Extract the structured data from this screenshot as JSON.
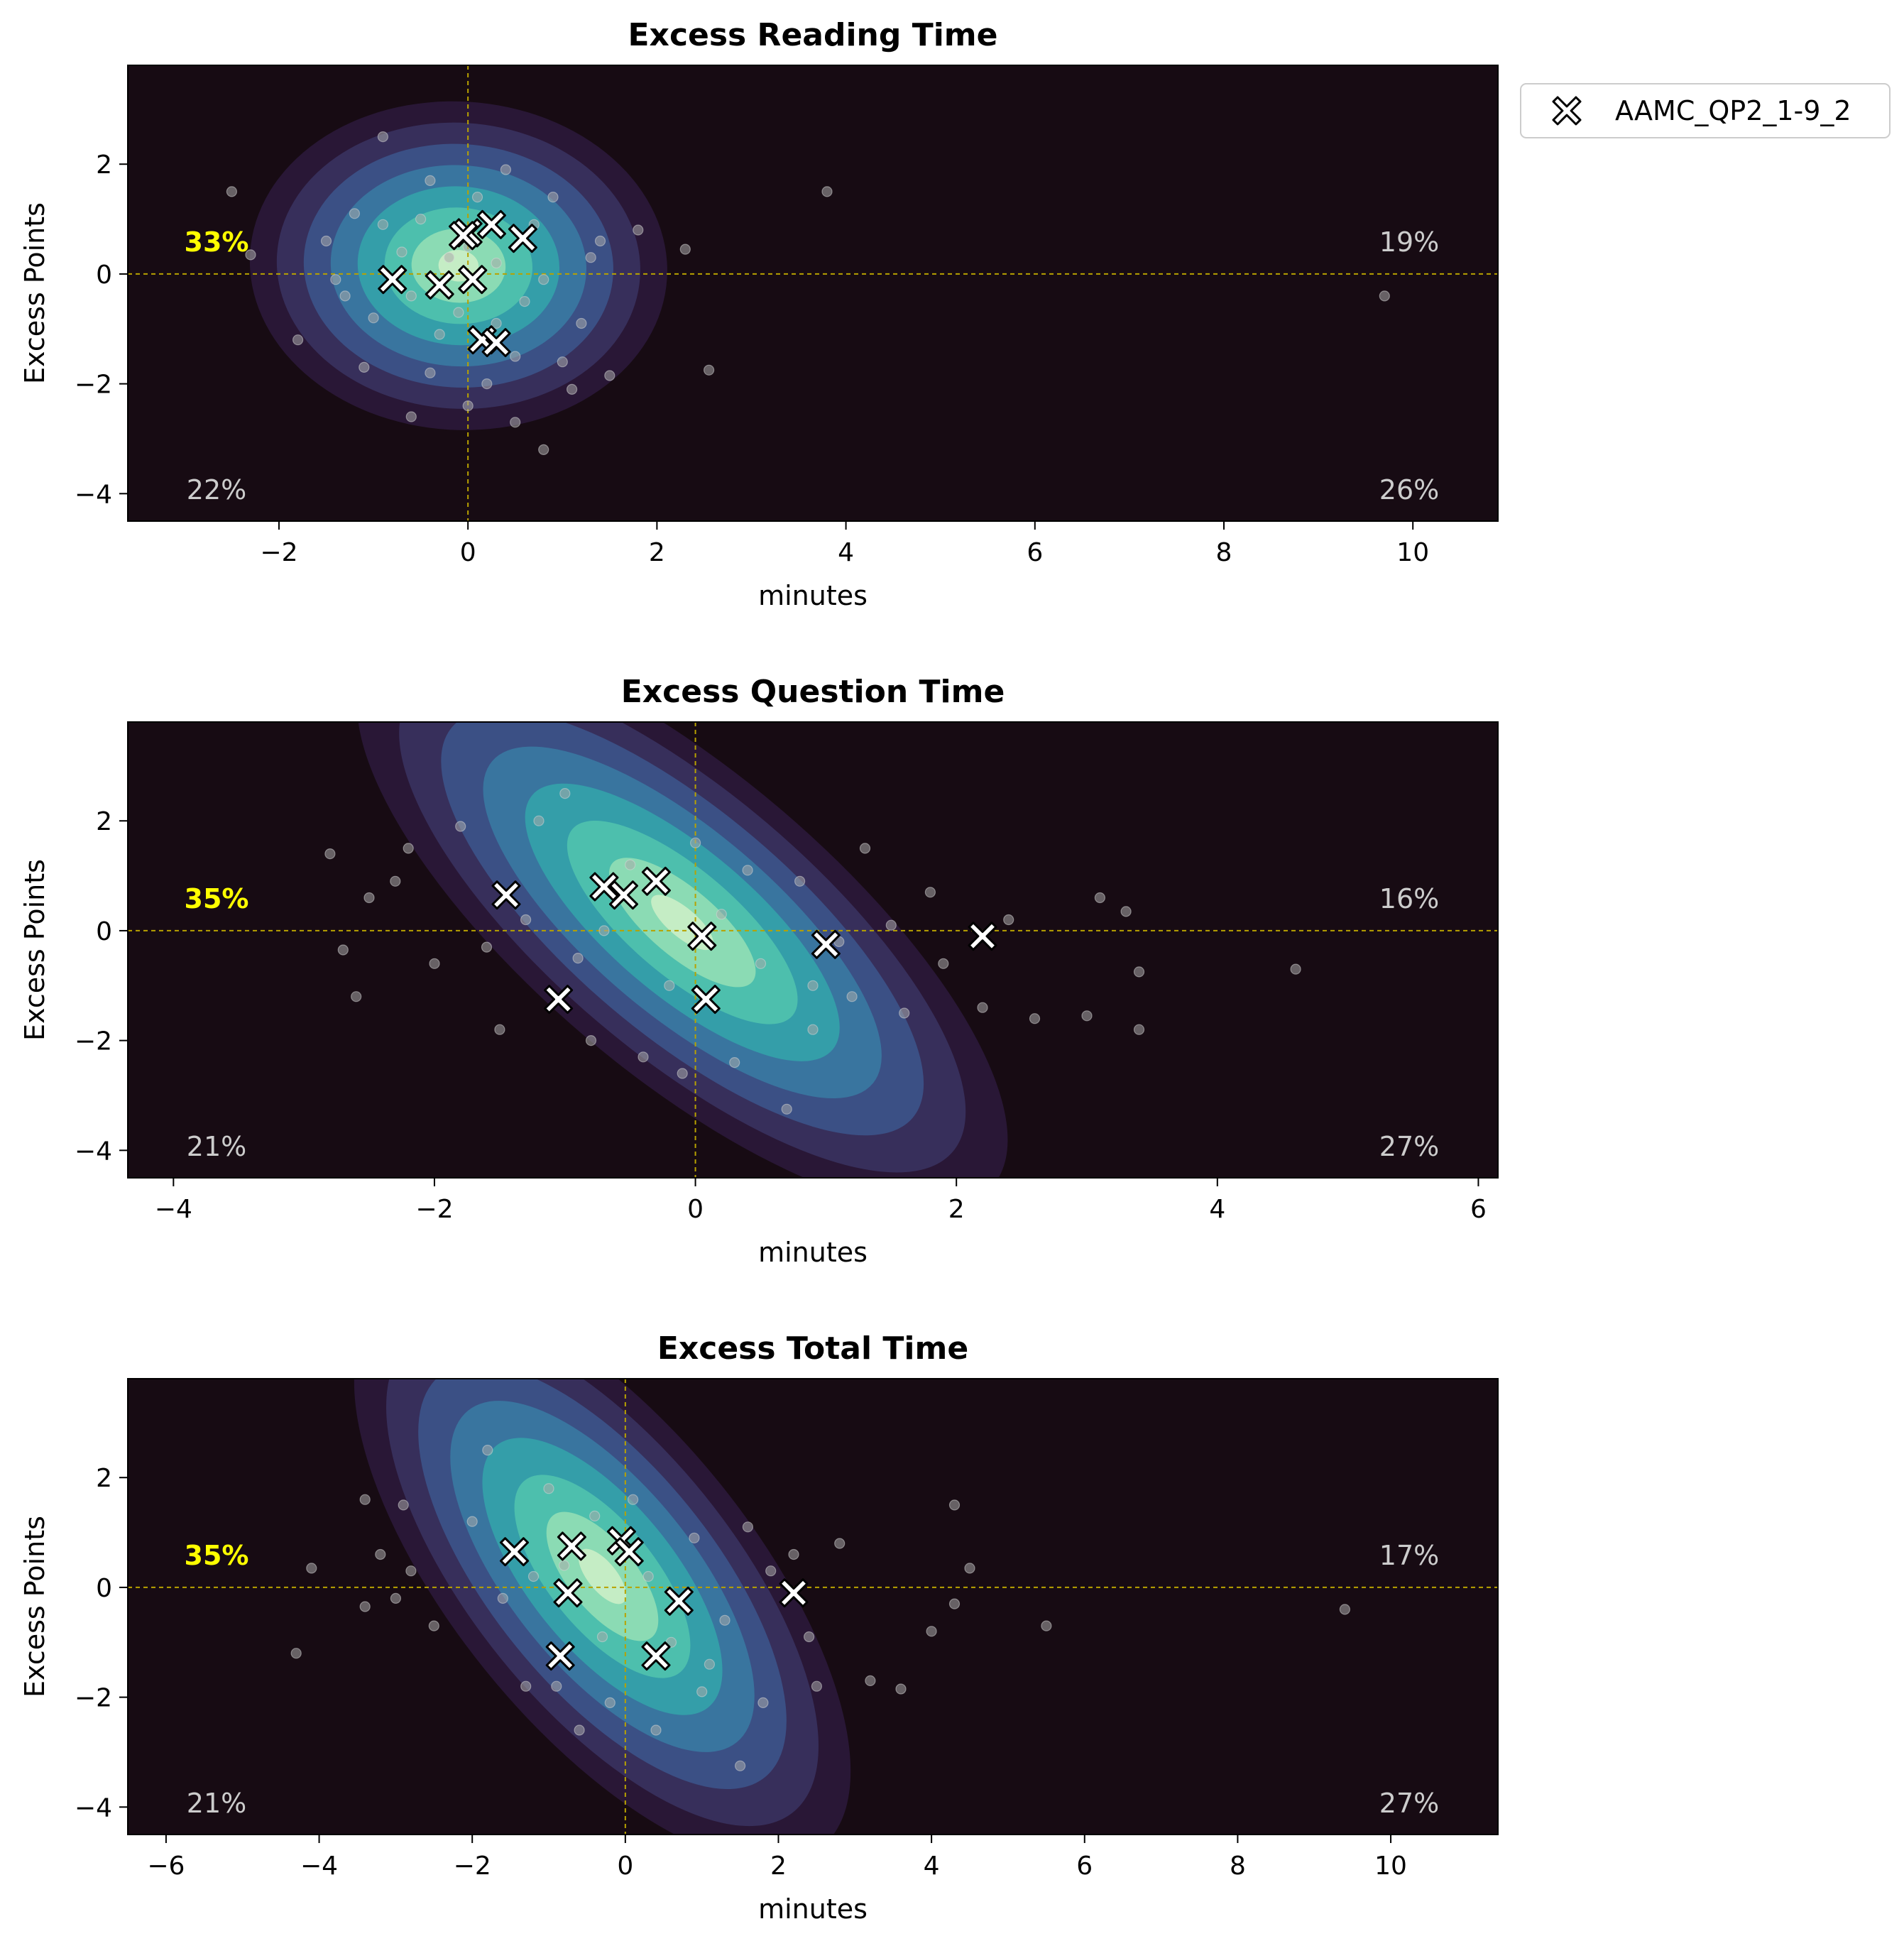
{
  "chart_data": [
    {
      "type": "scatter",
      "title": "Excess Reading Time",
      "xlabel": "minutes",
      "ylabel": "Excess Points",
      "xlim": [
        -3.6,
        10.9
      ],
      "ylim": [
        -4.5,
        3.8
      ],
      "xticks": [
        -2,
        0,
        2,
        4,
        6,
        8,
        10
      ],
      "yticks": [
        -4,
        -2,
        0,
        2
      ],
      "reference_lines": {
        "x": 0,
        "y": 0
      },
      "quadrant_labels": {
        "top_left": "33%",
        "top_right": "19%",
        "bottom_left": "22%",
        "bottom_right": "26%"
      },
      "highlight_quadrant": "top_left",
      "density": {
        "cx": -0.1,
        "cy": 0.15,
        "sx": 0.85,
        "sy": 1.15,
        "rho": -0.05
      },
      "series": [
        {
          "name": "AAMC_QP2_1-9_2",
          "marker": "X",
          "points": [
            [
              -0.8,
              -0.1
            ],
            [
              -0.3,
              -0.2
            ],
            [
              0.05,
              -0.1
            ],
            [
              0.0,
              0.75
            ],
            [
              -0.05,
              0.7
            ],
            [
              0.25,
              0.9
            ],
            [
              0.58,
              0.65
            ],
            [
              0.15,
              -1.2
            ],
            [
              0.3,
              -1.25
            ]
          ]
        }
      ],
      "background_points": [
        [
          -2.5,
          1.5
        ],
        [
          -2.3,
          0.35
        ],
        [
          -1.8,
          -1.2
        ],
        [
          -1.5,
          0.6
        ],
        [
          -1.3,
          -0.4
        ],
        [
          -1.1,
          -1.7
        ],
        [
          -0.9,
          2.5
        ],
        [
          -0.6,
          -2.6
        ],
        [
          -0.4,
          -1.8
        ],
        [
          0.0,
          -2.4
        ],
        [
          0.2,
          -2.0
        ],
        [
          0.5,
          -2.7
        ],
        [
          0.8,
          -3.2
        ],
        [
          1.1,
          -2.1
        ],
        [
          1.5,
          -1.85
        ],
        [
          1.8,
          0.8
        ],
        [
          2.3,
          0.45
        ],
        [
          2.55,
          -1.75
        ],
        [
          3.8,
          1.5
        ],
        [
          9.7,
          -0.4
        ],
        [
          -0.5,
          1.0
        ],
        [
          -0.2,
          0.3
        ],
        [
          0.3,
          0.2
        ],
        [
          0.6,
          -0.5
        ],
        [
          -0.7,
          0.4
        ],
        [
          0.9,
          1.4
        ],
        [
          1.3,
          0.3
        ],
        [
          -1.0,
          -0.8
        ],
        [
          0.4,
          1.9
        ],
        [
          -0.3,
          -1.1
        ],
        [
          1.0,
          -1.6
        ],
        [
          -1.2,
          1.1
        ],
        [
          0.1,
          1.4
        ],
        [
          0.7,
          0.9
        ],
        [
          -0.6,
          -0.4
        ],
        [
          1.2,
          -0.9
        ],
        [
          -0.9,
          0.9
        ],
        [
          0.5,
          -1.5
        ],
        [
          1.4,
          0.6
        ],
        [
          -0.4,
          1.7
        ],
        [
          -1.4,
          -0.1
        ],
        [
          0.0,
          0.5
        ],
        [
          0.8,
          -0.1
        ],
        [
          -0.1,
          -0.7
        ],
        [
          0.3,
          -0.9
        ]
      ]
    },
    {
      "type": "scatter",
      "title": "Excess Question Time",
      "xlabel": "minutes",
      "ylabel": "Excess Points",
      "xlim": [
        -4.35,
        6.15
      ],
      "ylim": [
        -4.5,
        3.8
      ],
      "xticks": [
        -4,
        -2,
        0,
        2,
        4,
        6
      ],
      "yticks": [
        -4,
        -2,
        0,
        2
      ],
      "reference_lines": {
        "x": 0,
        "y": 0
      },
      "quadrant_labels": {
        "top_left": "35%",
        "top_right": "16%",
        "bottom_left": "21%",
        "bottom_right": "27%"
      },
      "highlight_quadrant": "top_left",
      "density": {
        "cx": -0.1,
        "cy": 0.15,
        "sx": 1.2,
        "sy": 1.05,
        "rho": -0.45
      },
      "series": [
        {
          "name": "AAMC_QP2_1-9_2",
          "marker": "X",
          "points": [
            [
              -1.45,
              0.65
            ],
            [
              -1.05,
              -1.25
            ],
            [
              -0.7,
              0.8
            ],
            [
              -0.55,
              0.65
            ],
            [
              -0.3,
              0.9
            ],
            [
              0.05,
              -0.1
            ],
            [
              0.08,
              -1.25
            ],
            [
              1.0,
              -0.25
            ],
            [
              2.2,
              -0.1
            ]
          ]
        }
      ],
      "background_points": [
        [
          -2.8,
          1.4
        ],
        [
          -2.7,
          -0.35
        ],
        [
          -2.6,
          -1.2
        ],
        [
          -2.5,
          0.6
        ],
        [
          -2.2,
          1.5
        ],
        [
          -1.8,
          1.9
        ],
        [
          -1.5,
          -1.8
        ],
        [
          -1.2,
          2.0
        ],
        [
          -1.0,
          2.5
        ],
        [
          -0.8,
          -2.0
        ],
        [
          -0.4,
          -2.3
        ],
        [
          -0.1,
          -2.6
        ],
        [
          0.3,
          -2.4
        ],
        [
          0.7,
          -3.25
        ],
        [
          0.9,
          -1.8
        ],
        [
          1.3,
          1.5
        ],
        [
          1.6,
          -1.5
        ],
        [
          1.8,
          0.7
        ],
        [
          2.2,
          -1.4
        ],
        [
          2.6,
          -1.6
        ],
        [
          3.0,
          -1.55
        ],
        [
          3.1,
          0.6
        ],
        [
          3.3,
          0.35
        ],
        [
          3.4,
          -0.75
        ],
        [
          3.4,
          -1.8
        ],
        [
          4.6,
          -0.7
        ],
        [
          -2.0,
          -0.6
        ],
        [
          -1.3,
          0.2
        ],
        [
          -0.9,
          -0.5
        ],
        [
          -0.5,
          1.2
        ],
        [
          0.2,
          0.3
        ],
        [
          0.5,
          -0.6
        ],
        [
          0.8,
          0.9
        ],
        [
          1.1,
          -0.2
        ],
        [
          1.5,
          0.1
        ],
        [
          -0.2,
          -1.0
        ],
        [
          0.4,
          1.1
        ],
        [
          -1.6,
          -0.3
        ],
        [
          0.9,
          -1.0
        ],
        [
          1.9,
          -0.6
        ],
        [
          -0.7,
          0.0
        ],
        [
          2.4,
          0.2
        ],
        [
          -2.3,
          0.9
        ],
        [
          0.0,
          1.6
        ],
        [
          1.2,
          -1.2
        ]
      ]
    },
    {
      "type": "scatter",
      "title": "Excess Total Time",
      "xlabel": "minutes",
      "ylabel": "Excess Points",
      "xlim": [
        -6.5,
        11.4
      ],
      "ylim": [
        -4.5,
        3.8
      ],
      "xticks": [
        -6,
        -4,
        -2,
        0,
        2,
        4,
        6,
        8,
        10
      ],
      "yticks": [
        -4,
        -2,
        0,
        2
      ],
      "reference_lines": {
        "x": 0,
        "y": 0
      },
      "quadrant_labels": {
        "top_left": "35%",
        "top_right": "17%",
        "bottom_left": "21%",
        "bottom_right": "27%"
      },
      "highlight_quadrant": "top_left",
      "density": {
        "cx": -0.3,
        "cy": 0.2,
        "sx": 1.75,
        "sy": 1.05,
        "rho": -0.4
      },
      "series": [
        {
          "name": "AAMC_QP2_1-9_2",
          "marker": "X",
          "points": [
            [
              -1.45,
              0.65
            ],
            [
              -0.85,
              -1.25
            ],
            [
              -0.75,
              -0.1
            ],
            [
              -0.7,
              0.75
            ],
            [
              -0.05,
              0.85
            ],
            [
              0.05,
              0.65
            ],
            [
              0.4,
              -1.25
            ],
            [
              0.7,
              -0.25
            ],
            [
              2.2,
              -0.1
            ]
          ]
        }
      ],
      "background_points": [
        [
          -4.3,
          -1.2
        ],
        [
          -4.1,
          0.35
        ],
        [
          -3.4,
          1.6
        ],
        [
          -3.4,
          -0.35
        ],
        [
          -3.2,
          0.6
        ],
        [
          -2.8,
          0.3
        ],
        [
          -1.8,
          2.5
        ],
        [
          -1.3,
          -1.8
        ],
        [
          -0.9,
          -1.8
        ],
        [
          -0.6,
          -2.6
        ],
        [
          -0.2,
          -2.1
        ],
        [
          0.4,
          -2.6
        ],
        [
          1.0,
          -1.9
        ],
        [
          1.5,
          -3.25
        ],
        [
          1.8,
          -2.1
        ],
        [
          2.5,
          -1.8
        ],
        [
          2.8,
          0.8
        ],
        [
          3.2,
          -1.7
        ],
        [
          3.6,
          -1.85
        ],
        [
          4.0,
          -0.8
        ],
        [
          4.3,
          1.5
        ],
        [
          4.3,
          -0.3
        ],
        [
          4.5,
          0.35
        ],
        [
          5.5,
          -0.7
        ],
        [
          9.4,
          -0.4
        ],
        [
          -2.5,
          -0.7
        ],
        [
          -2.0,
          1.2
        ],
        [
          -1.2,
          0.2
        ],
        [
          -0.4,
          1.3
        ],
        [
          0.3,
          0.2
        ],
        [
          0.9,
          0.9
        ],
        [
          1.3,
          -0.6
        ],
        [
          1.9,
          0.3
        ],
        [
          -1.6,
          -0.2
        ],
        [
          0.6,
          -1.0
        ],
        [
          -0.3,
          -0.9
        ],
        [
          2.4,
          -0.9
        ],
        [
          -2.9,
          1.5
        ],
        [
          1.6,
          1.1
        ],
        [
          -1.0,
          1.8
        ],
        [
          0.1,
          1.6
        ],
        [
          2.2,
          0.6
        ],
        [
          -3.0,
          -0.2
        ],
        [
          1.1,
          -1.4
        ],
        [
          -0.8,
          0.4
        ]
      ]
    }
  ],
  "legend": {
    "label": "AAMC_QP2_1-9_2",
    "icon": "x-marker-icon",
    "placement": "outside-top-right"
  },
  "colors": {
    "axes_background": "#170b13",
    "quadrant_highlight": "#ffff00",
    "quadrant_label": "#cccccc",
    "reference_line": "#b8a200",
    "density_palette": [
      "#2a1838",
      "#38305e",
      "#3b5288",
      "#3977a0",
      "#34a0aa",
      "#4fc1ad",
      "#8edcb4",
      "#c8eec6"
    ]
  }
}
